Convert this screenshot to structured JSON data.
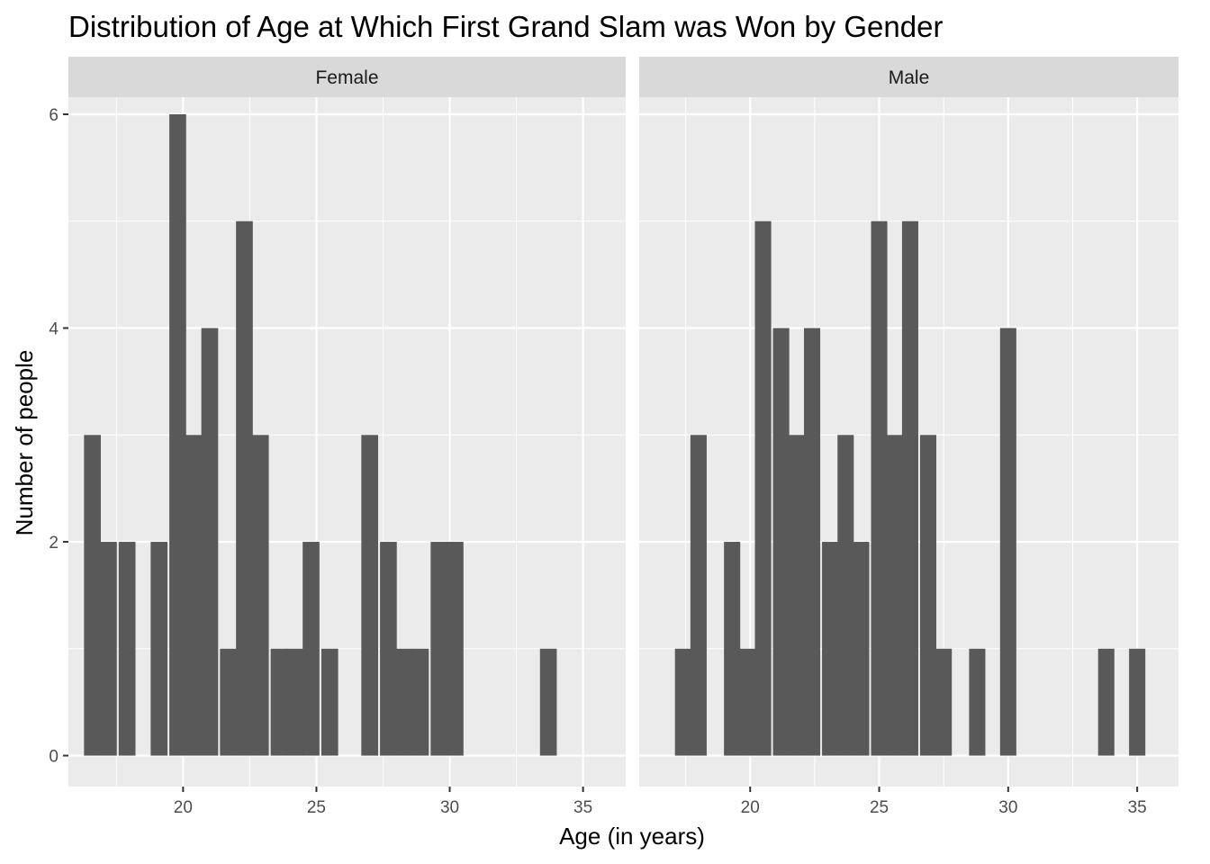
{
  "chart_data": {
    "type": "bar",
    "title": "Distribution of Age at Which First Grand Slam was Won by Gender",
    "xlabel": "Age (in years)",
    "ylabel": "Number of people",
    "xlim": [
      15.7,
      36.6
    ],
    "ylim": [
      -0.29,
      6.16
    ],
    "x_ticks": [
      20,
      25,
      30,
      35
    ],
    "y_ticks": [
      0,
      2,
      4,
      6
    ],
    "bin_width": 0.63,
    "grid": true,
    "facets": [
      {
        "name": "Female",
        "bins": [
          {
            "x": 16.6,
            "count": 3
          },
          {
            "x": 17.2,
            "count": 2
          },
          {
            "x": 17.9,
            "count": 2
          },
          {
            "x": 19.1,
            "count": 2
          },
          {
            "x": 19.8,
            "count": 6
          },
          {
            "x": 20.4,
            "count": 3
          },
          {
            "x": 21.0,
            "count": 4
          },
          {
            "x": 21.7,
            "count": 1
          },
          {
            "x": 22.3,
            "count": 5
          },
          {
            "x": 22.9,
            "count": 3
          },
          {
            "x": 23.6,
            "count": 1
          },
          {
            "x": 24.2,
            "count": 1
          },
          {
            "x": 24.8,
            "count": 2
          },
          {
            "x": 25.5,
            "count": 1
          },
          {
            "x": 27.0,
            "count": 3
          },
          {
            "x": 27.7,
            "count": 2
          },
          {
            "x": 28.3,
            "count": 1
          },
          {
            "x": 28.9,
            "count": 1
          },
          {
            "x": 29.6,
            "count": 2
          },
          {
            "x": 30.2,
            "count": 2
          },
          {
            "x": 33.7,
            "count": 1
          }
        ]
      },
      {
        "name": "Male",
        "bins": [
          {
            "x": 17.4,
            "count": 1
          },
          {
            "x": 18.0,
            "count": 3
          },
          {
            "x": 19.3,
            "count": 2
          },
          {
            "x": 19.9,
            "count": 1
          },
          {
            "x": 20.5,
            "count": 5
          },
          {
            "x": 21.2,
            "count": 4
          },
          {
            "x": 21.8,
            "count": 3
          },
          {
            "x": 22.4,
            "count": 4
          },
          {
            "x": 23.1,
            "count": 2
          },
          {
            "x": 23.7,
            "count": 3
          },
          {
            "x": 24.3,
            "count": 2
          },
          {
            "x": 25.0,
            "count": 5
          },
          {
            "x": 25.6,
            "count": 3
          },
          {
            "x": 26.2,
            "count": 5
          },
          {
            "x": 26.9,
            "count": 3
          },
          {
            "x": 27.5,
            "count": 1
          },
          {
            "x": 28.8,
            "count": 1
          },
          {
            "x": 30.0,
            "count": 4
          },
          {
            "x": 33.8,
            "count": 1
          },
          {
            "x": 35.0,
            "count": 1
          }
        ]
      }
    ]
  }
}
